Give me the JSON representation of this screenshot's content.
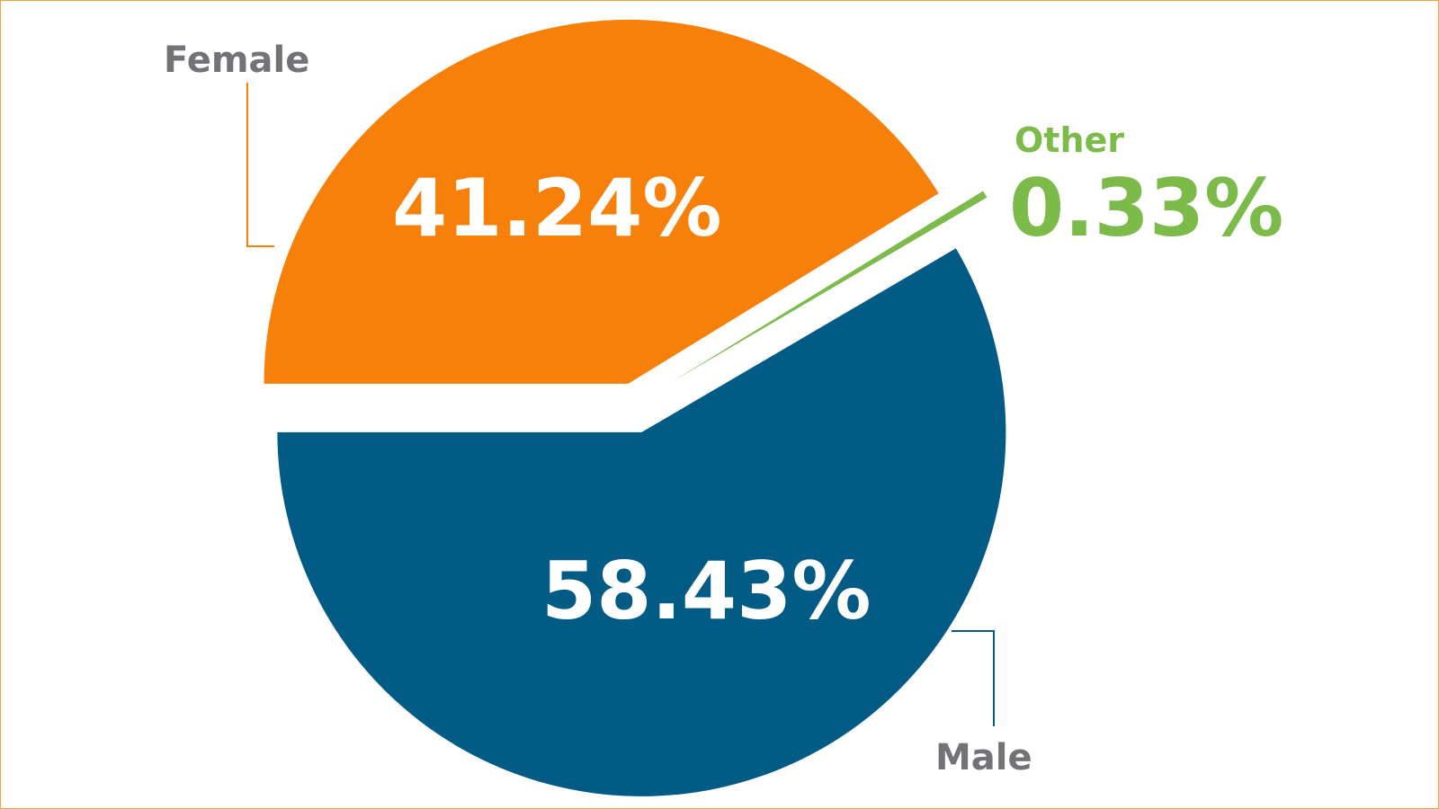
{
  "chart_data": {
    "type": "pie",
    "categories": [
      "Female",
      "Other",
      "Male"
    ],
    "values": [
      41.24,
      0.33,
      58.43
    ],
    "labels": {
      "female_name": "Female",
      "female_pct": "41.24%",
      "other_name": "Other",
      "other_pct": "0.33%",
      "male_name": "Male",
      "male_pct": "58.43%"
    },
    "colors": {
      "Female": "#f7800b",
      "Other": "#7cbb4a",
      "Male": "#015b85",
      "category_text": "#727376",
      "border": "#f0a443"
    },
    "legend": "none",
    "exploded": true
  }
}
